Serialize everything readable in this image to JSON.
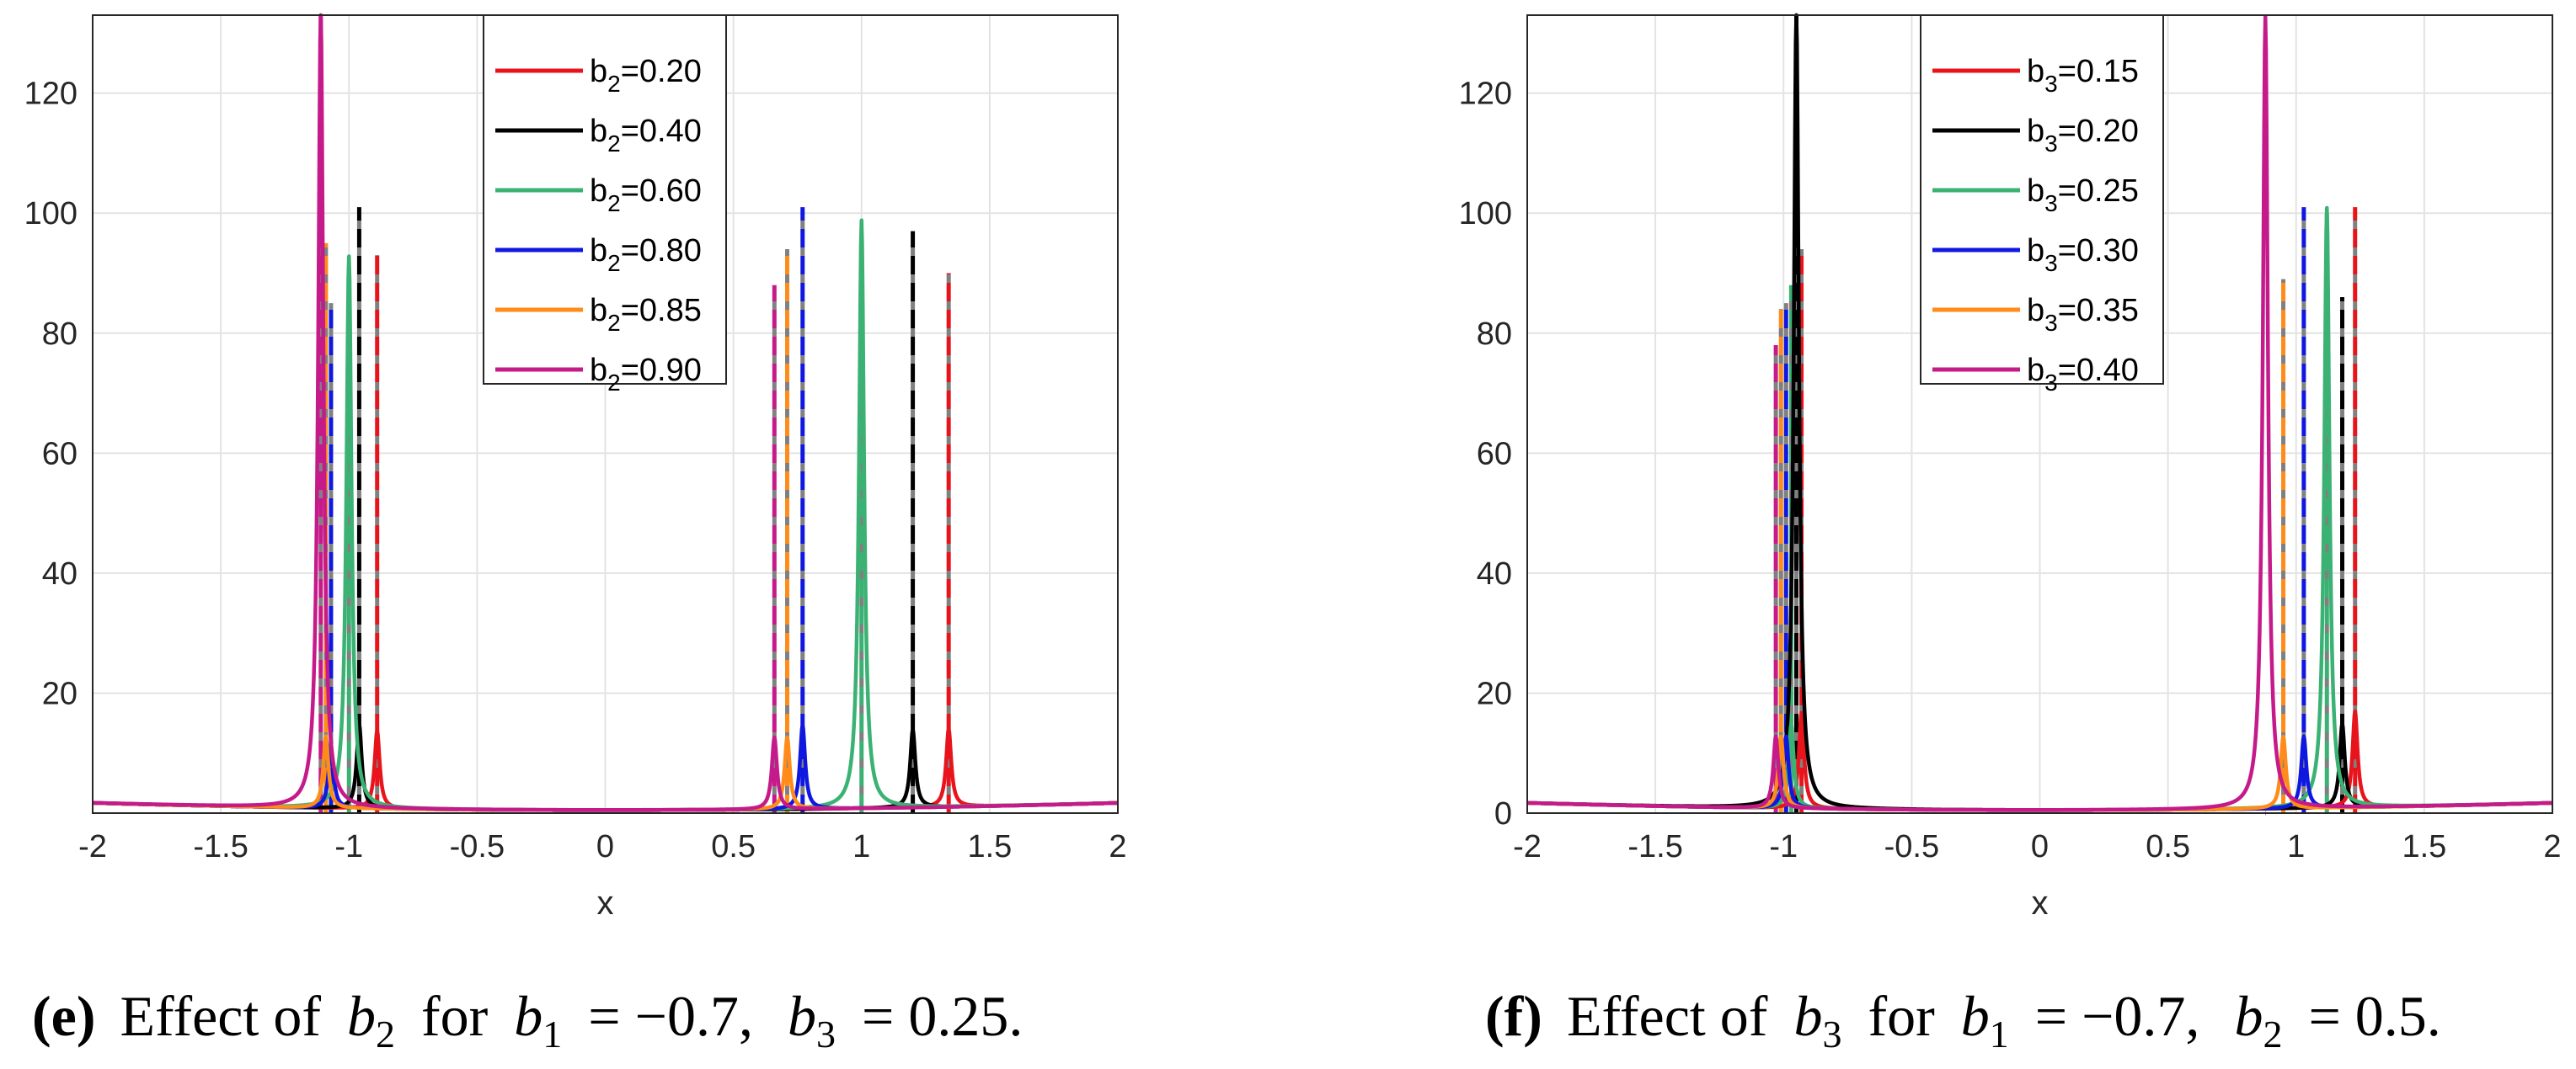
{
  "colors": {
    "red": "#e8141c",
    "black": "#000000",
    "green": "#3bb273",
    "blue": "#1018e0",
    "orange": "#ff8c1a",
    "magenta": "#c51a8a",
    "dash": "#808080",
    "grid": "#e3e3e3",
    "axis": "#262626"
  },
  "chart_data": [
    {
      "type": "line",
      "panel": "e",
      "xlabel": "x",
      "ylabel": "",
      "xlim": [
        -2,
        2
      ],
      "ylim": [
        0,
        133
      ],
      "xticks": [
        "-2",
        "-1.5",
        "-1",
        "-0.5",
        "0",
        "0.5",
        "1",
        "1.5",
        "2"
      ],
      "yticks": [
        "20",
        "40",
        "60",
        "80",
        "100",
        "120"
      ],
      "grid": true,
      "legend_position": "top-center",
      "caption": {
        "label": "(e)",
        "text1": "Effect of",
        "var": "b",
        "sub": "2",
        "text2": "for",
        "expr1": "b",
        "sub1": "1",
        "eq1": "= −0.7,",
        "expr2": "b",
        "sub2": "3",
        "eq2": "= 0.25."
      },
      "series": [
        {
          "legend_base": "b",
          "legend_sub": "2",
          "legend_value": "=0.20",
          "color": "#e8141c",
          "peaks": [
            {
              "x": -0.89,
              "height": 13,
              "dash_top": 93
            },
            {
              "x": 1.34,
              "height": 13,
              "dash_top": 90
            }
          ]
        },
        {
          "legend_base": "b",
          "legend_sub": "2",
          "legend_value": "=0.40",
          "color": "#000000",
          "peaks": [
            {
              "x": -0.96,
              "height": 14,
              "dash_top": 101
            },
            {
              "x": 1.2,
              "height": 13,
              "dash_top": 97
            }
          ]
        },
        {
          "legend_base": "b",
          "legend_sub": "2",
          "legend_value": "=0.60",
          "color": "#3bb273",
          "peaks": [
            {
              "x": -1.0,
              "height": 92,
              "dash_top": 91
            },
            {
              "x": 1.0,
              "height": 98,
              "dash_top": 96
            }
          ]
        },
        {
          "legend_base": "b",
          "legend_sub": "2",
          "legend_value": "=0.80",
          "color": "#1018e0",
          "peaks": [
            {
              "x": -1.07,
              "height": 10,
              "dash_top": 85
            },
            {
              "x": 0.77,
              "height": 14,
              "dash_top": 101
            }
          ]
        },
        {
          "legend_base": "b",
          "legend_sub": "2",
          "legend_value": "=0.85",
          "color": "#ff8c1a",
          "peaks": [
            {
              "x": -1.09,
              "height": 12,
              "dash_top": 95
            },
            {
              "x": 0.71,
              "height": 12,
              "dash_top": 94
            }
          ]
        },
        {
          "legend_base": "b",
          "legend_sub": "2",
          "legend_value": "=0.90",
          "color": "#c51a8a",
          "peaks": [
            {
              "x": -1.11,
              "height": 133,
              "dash_top": 133
            },
            {
              "x": 0.66,
              "height": 12,
              "dash_top": 88
            }
          ]
        }
      ]
    },
    {
      "type": "line",
      "panel": "f",
      "xlabel": "x",
      "ylabel": "",
      "xlim": [
        -2,
        2
      ],
      "ylim": [
        0,
        133
      ],
      "xticks": [
        "-2",
        "-1.5",
        "-1",
        "-0.5",
        "0",
        "0.5",
        "1",
        "1.5",
        "2"
      ],
      "yticks": [
        "0",
        "20",
        "40",
        "60",
        "80",
        "100",
        "120"
      ],
      "grid": true,
      "legend_position": "top-center",
      "caption": {
        "label": "(f)",
        "text1": "Effect of",
        "var": "b",
        "sub": "3",
        "text2": "for",
        "expr1": "b",
        "sub1": "1",
        "eq1": "= −0.7,",
        "expr2": "b",
        "sub2": "2",
        "eq2": "= 0.5."
      },
      "series": [
        {
          "legend_base": "b",
          "legend_sub": "3",
          "legend_value": "=0.15",
          "color": "#e8141c",
          "peaks": [
            {
              "x": -0.93,
              "height": 16,
              "dash_top": 94
            },
            {
              "x": 1.23,
              "height": 16,
              "dash_top": 101
            }
          ]
        },
        {
          "legend_base": "b",
          "legend_sub": "3",
          "legend_value": "=0.20",
          "color": "#000000",
          "peaks": [
            {
              "x": -0.95,
              "height": 133,
              "dash_top": 133
            },
            {
              "x": 1.18,
              "height": 14,
              "dash_top": 86
            }
          ]
        },
        {
          "legend_base": "b",
          "legend_sub": "3",
          "legend_value": "=0.25",
          "color": "#3bb273",
          "peaks": [
            {
              "x": -0.97,
              "height": 14,
              "dash_top": 88
            },
            {
              "x": 1.12,
              "height": 100,
              "dash_top": 100
            }
          ]
        },
        {
          "legend_base": "b",
          "legend_sub": "3",
          "legend_value": "=0.30",
          "color": "#1018e0",
          "peaks": [
            {
              "x": -0.99,
              "height": 12,
              "dash_top": 85
            },
            {
              "x": 1.03,
              "height": 12,
              "dash_top": 101
            }
          ]
        },
        {
          "legend_base": "b",
          "legend_sub": "3",
          "legend_value": "=0.35",
          "color": "#ff8c1a",
          "peaks": [
            {
              "x": -1.01,
              "height": 12,
              "dash_top": 84
            },
            {
              "x": 0.95,
              "height": 12,
              "dash_top": 89
            }
          ]
        },
        {
          "legend_base": "b",
          "legend_sub": "3",
          "legend_value": "=0.40",
          "color": "#c51a8a",
          "peaks": [
            {
              "x": -1.03,
              "height": 12,
              "dash_top": 78
            },
            {
              "x": 0.88,
              "height": 132,
              "dash_top": 0
            }
          ]
        }
      ]
    }
  ]
}
